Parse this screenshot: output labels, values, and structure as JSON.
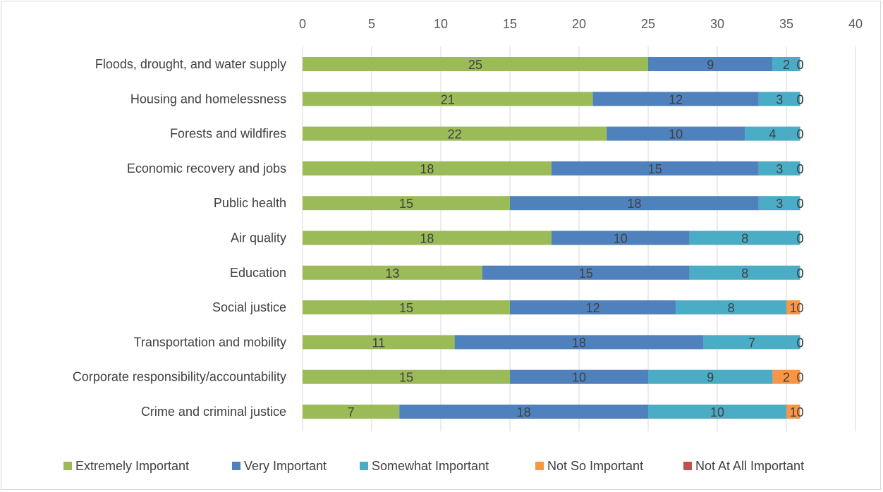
{
  "chart_data": {
    "type": "bar",
    "orientation": "horizontal",
    "stacked": true,
    "title": "",
    "xlabel": "",
    "ylabel": "",
    "xlim": [
      0,
      40
    ],
    "x_ticks": [
      0,
      5,
      10,
      15,
      20,
      25,
      30,
      35,
      40
    ],
    "x_axis_position": "top",
    "grid": "vertical",
    "legend_position": "bottom",
    "categories": [
      "Floods, drought, and water supply",
      "Housing and homelessness",
      "Forests and wildfires",
      "Economic recovery and jobs",
      "Public health",
      "Air quality",
      "Education",
      "Social justice",
      "Transportation and mobility",
      "Corporate responsibility/accountability",
      "Crime and criminal justice"
    ],
    "series": [
      {
        "name": "Extremely Important",
        "color": "#9bbb59",
        "values": [
          25,
          21,
          22,
          18,
          15,
          18,
          13,
          15,
          11,
          15,
          7
        ]
      },
      {
        "name": "Very Important",
        "color": "#4f81bd",
        "values": [
          9,
          12,
          10,
          15,
          18,
          10,
          15,
          12,
          18,
          10,
          18
        ]
      },
      {
        "name": "Somewhat Important",
        "color": "#4bacc6",
        "values": [
          2,
          3,
          4,
          3,
          3,
          8,
          8,
          8,
          7,
          9,
          10
        ]
      },
      {
        "name": "Not So Important",
        "color": "#f79646",
        "values": [
          0,
          0,
          0,
          0,
          0,
          0,
          0,
          1,
          0,
          2,
          1
        ]
      },
      {
        "name": "Not At All Important",
        "color": "#c0504d",
        "values": [
          0,
          0,
          0,
          0,
          0,
          0,
          0,
          0,
          0,
          0,
          0
        ]
      }
    ]
  }
}
